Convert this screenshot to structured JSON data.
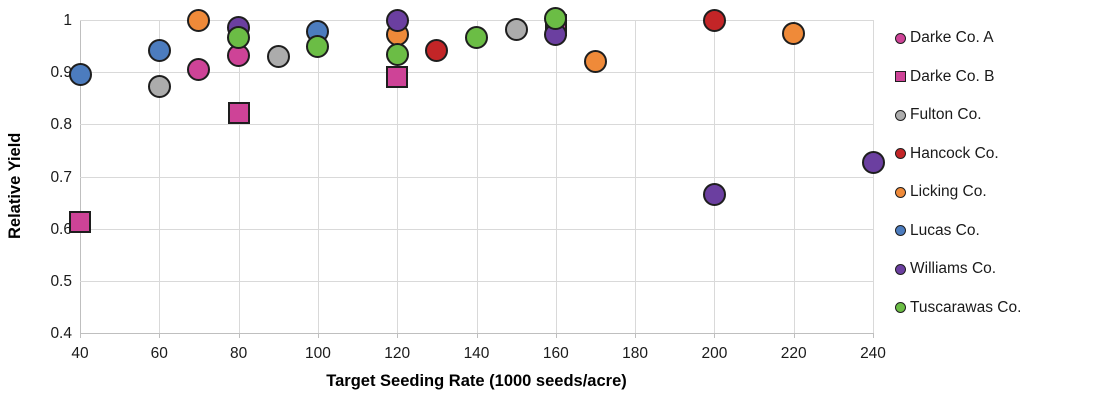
{
  "chart_data": {
    "type": "scatter",
    "title": "",
    "xlabel": "Target Seeding Rate (1000 seeds/acre)",
    "ylabel": "Relative Yield",
    "xlim": [
      40,
      240
    ],
    "ylim": [
      0.4,
      1.0
    ],
    "x_ticks": [
      40,
      60,
      80,
      100,
      120,
      140,
      160,
      180,
      200,
      220,
      240
    ],
    "y_ticks": [
      "1",
      "0.9",
      "0.8",
      "0.7",
      "0.6",
      "0.5",
      "0.4"
    ],
    "y_tick_values": [
      1.0,
      0.9,
      0.8,
      0.7,
      0.6,
      0.5,
      0.4
    ],
    "grid": true,
    "legend_position": "right",
    "marker_outline_color": "#1E1E1E",
    "grid_color": "#D9D9D9",
    "axis_color": "#BFBFBF",
    "text_color": "#1A1A1A",
    "series": [
      {
        "name": "Darke Co. A",
        "marker": "circle",
        "color": "#CE4397",
        "points": [
          [
            70,
            0.905
          ],
          [
            80,
            0.932
          ]
        ]
      },
      {
        "name": "Darke Co. B",
        "marker": "square",
        "color": "#CE4397",
        "points": [
          [
            40,
            0.613
          ],
          [
            80,
            0.822
          ],
          [
            120,
            0.891
          ],
          [
            160,
            0.99
          ]
        ]
      },
      {
        "name": "Fulton Co.",
        "marker": "circle",
        "color": "#ACACAC",
        "points": [
          [
            60,
            0.872
          ],
          [
            90,
            0.93
          ],
          [
            150,
            0.982
          ]
        ]
      },
      {
        "name": "Hancock Co.",
        "marker": "circle",
        "color": "#C32527",
        "points": [
          [
            130,
            0.942
          ],
          [
            200,
            1.0
          ]
        ]
      },
      {
        "name": "Licking Co.",
        "marker": "circle",
        "color": "#EF8A39",
        "points": [
          [
            70,
            1.0
          ],
          [
            120,
            0.973
          ],
          [
            170,
            0.921
          ],
          [
            220,
            0.974
          ]
        ]
      },
      {
        "name": "Lucas Co.",
        "marker": "circle",
        "color": "#4C7CBE",
        "points": [
          [
            40,
            0.896
          ],
          [
            60,
            0.942
          ],
          [
            100,
            0.977
          ]
        ]
      },
      {
        "name": "Williams Co.",
        "marker": "circle",
        "color": "#6B3FA0",
        "points": [
          [
            80,
            0.985
          ],
          [
            120,
            1.0
          ],
          [
            160,
            0.972
          ],
          [
            200,
            0.665
          ],
          [
            240,
            0.727
          ]
        ]
      },
      {
        "name": "Tuscarawas Co.",
        "marker": "circle",
        "color": "#6BBD45",
        "points": [
          [
            80,
            0.967
          ],
          [
            100,
            0.949
          ],
          [
            120,
            0.934
          ],
          [
            140,
            0.966
          ],
          [
            160,
            1.002
          ]
        ]
      }
    ]
  }
}
